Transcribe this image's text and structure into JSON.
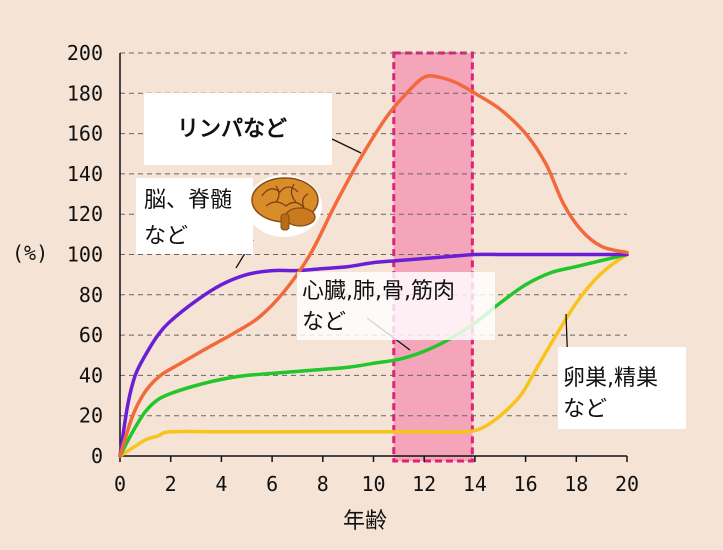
{
  "chart_data": {
    "type": "line",
    "title": "",
    "xlabel": "年齢",
    "ylabel": "(%)",
    "xlim": [
      0,
      20
    ],
    "ylim": [
      0,
      200
    ],
    "xticks": [
      0,
      2,
      4,
      6,
      8,
      10,
      12,
      14,
      16,
      18,
      20
    ],
    "yticks": [
      0,
      20,
      40,
      60,
      80,
      100,
      120,
      140,
      160,
      180,
      200
    ],
    "grid": "horizontal-dashed",
    "highlight_range": {
      "x_from": 10.8,
      "x_to": 13.9,
      "color": "#f59ab5"
    },
    "series": [
      {
        "name": "リンパなど",
        "color": "#f26a3c",
        "points": [
          [
            0,
            0
          ],
          [
            0.5,
            20
          ],
          [
            1,
            32
          ],
          [
            1.6,
            40
          ],
          [
            2.4,
            46
          ],
          [
            3.5,
            54
          ],
          [
            4.5,
            61
          ],
          [
            5.5,
            69
          ],
          [
            6.5,
            82
          ],
          [
            7.5,
            100
          ],
          [
            8.5,
            125
          ],
          [
            9.5,
            148
          ],
          [
            10.5,
            168
          ],
          [
            11.3,
            180
          ],
          [
            12,
            188
          ],
          [
            12.6,
            188
          ],
          [
            13.3,
            185
          ],
          [
            14,
            180
          ],
          [
            15,
            172
          ],
          [
            16,
            160
          ],
          [
            16.8,
            145
          ],
          [
            17.5,
            125
          ],
          [
            18.2,
            112
          ],
          [
            19,
            104
          ],
          [
            20,
            101
          ]
        ]
      },
      {
        "name": "脳、脊髄など",
        "color": "#6a1fd6",
        "points": [
          [
            0,
            0
          ],
          [
            0.3,
            25
          ],
          [
            0.6,
            40
          ],
          [
            1,
            50
          ],
          [
            1.5,
            60
          ],
          [
            2,
            67
          ],
          [
            3,
            77
          ],
          [
            4,
            85
          ],
          [
            5,
            90
          ],
          [
            6,
            92
          ],
          [
            7,
            92
          ],
          [
            8,
            93
          ],
          [
            9,
            94
          ],
          [
            10,
            96
          ],
          [
            11,
            97
          ],
          [
            12,
            98
          ],
          [
            13,
            99
          ],
          [
            14,
            100
          ],
          [
            15,
            100
          ],
          [
            16,
            100
          ],
          [
            17,
            100
          ],
          [
            18,
            100
          ],
          [
            19,
            100
          ],
          [
            20,
            100
          ]
        ]
      },
      {
        "name": "心臓,肺,骨,筋肉など",
        "color": "#22c52a",
        "points": [
          [
            0,
            0
          ],
          [
            0.5,
            12
          ],
          [
            1,
            22
          ],
          [
            1.5,
            28
          ],
          [
            2,
            31
          ],
          [
            3,
            35
          ],
          [
            4,
            38
          ],
          [
            5,
            40
          ],
          [
            6,
            41
          ],
          [
            7,
            42
          ],
          [
            8,
            43
          ],
          [
            9,
            44
          ],
          [
            10,
            46
          ],
          [
            11,
            48
          ],
          [
            12,
            52
          ],
          [
            13,
            58
          ],
          [
            14,
            66
          ],
          [
            15,
            76
          ],
          [
            16,
            85
          ],
          [
            17,
            91
          ],
          [
            18,
            94
          ],
          [
            19,
            97
          ],
          [
            20,
            100
          ]
        ]
      },
      {
        "name": "卵巣,精巣など",
        "color": "#f8c31a",
        "points": [
          [
            0,
            0
          ],
          [
            0.5,
            4
          ],
          [
            1,
            8
          ],
          [
            1.5,
            10
          ],
          [
            2,
            12
          ],
          [
            4,
            12
          ],
          [
            6,
            12
          ],
          [
            8,
            12
          ],
          [
            10,
            12
          ],
          [
            12,
            12
          ],
          [
            13.6,
            12
          ],
          [
            14.3,
            14
          ],
          [
            15,
            20
          ],
          [
            15.8,
            30
          ],
          [
            16.5,
            45
          ],
          [
            17.3,
            62
          ],
          [
            18,
            76
          ],
          [
            18.7,
            87
          ],
          [
            19.3,
            94
          ],
          [
            20,
            100
          ]
        ]
      }
    ],
    "annotations": [
      {
        "text_lines": [
          "リンパなど"
        ],
        "series": "リンパなど",
        "bold": true
      },
      {
        "text_lines": [
          "脳、脊髄",
          "など"
        ],
        "series": "脳、脊髄など",
        "bold": false
      },
      {
        "text_lines": [
          "心臓,肺,骨,筋肉",
          "など"
        ],
        "series": "心臓,肺,骨,筋肉など",
        "bold": false
      },
      {
        "text_lines": [
          "卵巣,精巣",
          "など"
        ],
        "series": "卵巣,精巣など",
        "bold": false
      }
    ]
  }
}
